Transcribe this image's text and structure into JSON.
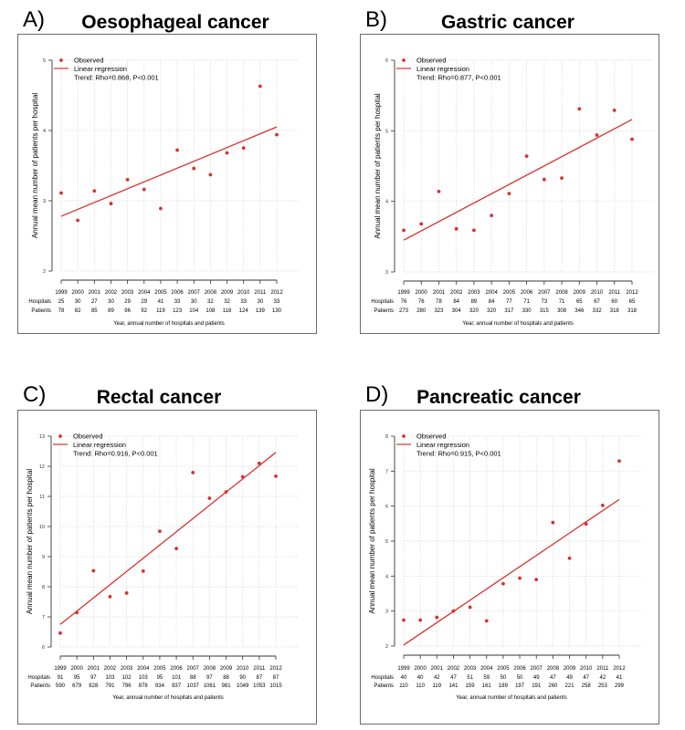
{
  "figure": {
    "accent_color": "#d9302f"
  },
  "chart_data": [
    {
      "type": "scatter",
      "panel_letter": "A)",
      "title": "Oesophageal cancer",
      "xlabel": "Year, annual number of hospitals and patients",
      "ylabel": "Annual mean number of patients per hospital",
      "ylim": [
        2,
        5
      ],
      "yticks": [
        "2",
        "3",
        "4",
        "5"
      ],
      "grid": true,
      "legend": {
        "placement": "top-left",
        "observed": "Observed",
        "regression": "Linear regression",
        "trend": "Trend: Rho=0.868, P<0.001"
      },
      "x": [
        "1999",
        "2000",
        "2001",
        "2002",
        "2003",
        "2004",
        "2005",
        "2006",
        "2007",
        "2008",
        "2009",
        "2010",
        "2011",
        "2012"
      ],
      "series": [
        {
          "name": "Observed",
          "values": [
            3.11,
            2.72,
            3.14,
            2.96,
            3.3,
            3.16,
            2.89,
            3.72,
            3.46,
            3.37,
            3.68,
            3.75,
            4.63,
            3.94
          ]
        },
        {
          "name": "Linear regression",
          "values": [
            2.78,
            4.05
          ],
          "x": [
            "1999",
            "2012"
          ]
        }
      ],
      "table": {
        "row_labels": [
          "Hospitals",
          "Patients"
        ],
        "hospitals": [
          "25",
          "30",
          "27",
          "30",
          "29",
          "29",
          "41",
          "33",
          "30",
          "32",
          "32",
          "33",
          "30",
          "33"
        ],
        "patients": [
          "78",
          "82",
          "85",
          "89",
          "96",
          "92",
          "119",
          "123",
          "104",
          "108",
          "118",
          "124",
          "139",
          "130"
        ]
      }
    },
    {
      "type": "scatter",
      "panel_letter": "B)",
      "title": "Gastric cancer",
      "xlabel": "Year, annual number of hospitals and patients",
      "ylabel": "Annual mean number of patients per hospital",
      "ylim": [
        3,
        6
      ],
      "yticks": [
        "3",
        "4",
        "5",
        "6"
      ],
      "grid": true,
      "legend": {
        "placement": "top-left",
        "observed": "Observed",
        "regression": "Linear regression",
        "trend": "Trend: Rho=0.877, P<0.001"
      },
      "x": [
        "1999",
        "2000",
        "2001",
        "2002",
        "2003",
        "2004",
        "2005",
        "2006",
        "2007",
        "2008",
        "2009",
        "2010",
        "2011",
        "2012"
      ],
      "series": [
        {
          "name": "Observed",
          "values": [
            3.59,
            3.68,
            4.14,
            3.61,
            3.59,
            3.8,
            4.11,
            4.64,
            4.31,
            4.33,
            5.31,
            4.94,
            5.29,
            4.88
          ]
        },
        {
          "name": "Linear regression",
          "values": [
            3.45,
            5.16
          ],
          "x": [
            "1999",
            "2012"
          ]
        }
      ],
      "table": {
        "row_labels": [
          "Hospitals",
          "Patients"
        ],
        "hospitals": [
          "76",
          "76",
          "78",
          "84",
          "89",
          "84",
          "77",
          "71",
          "73",
          "71",
          "65",
          "67",
          "60",
          "65"
        ],
        "patients": [
          "273",
          "280",
          "323",
          "304",
          "320",
          "320",
          "317",
          "330",
          "315",
          "308",
          "346",
          "332",
          "318",
          "318"
        ]
      }
    },
    {
      "type": "scatter",
      "panel_letter": "C)",
      "title": "Rectal cancer",
      "xlabel": "Year, annual number of hospitals and patients",
      "ylabel": "Annual mean number of patients per hospital",
      "ylim": [
        6,
        13
      ],
      "yticks": [
        "6",
        "7",
        "8",
        "9",
        "10",
        "11",
        "12",
        "13"
      ],
      "grid": true,
      "legend": {
        "placement": "top-left",
        "observed": "Observed",
        "regression": "Linear regression",
        "trend": "Trend: Rho=0.916, P<0.001"
      },
      "x": [
        "1999",
        "2000",
        "2001",
        "2002",
        "2003",
        "2004",
        "2005",
        "2006",
        "2007",
        "2008",
        "2009",
        "2010",
        "2011",
        "2012"
      ],
      "series": [
        {
          "name": "Observed",
          "values": [
            6.46,
            7.14,
            8.53,
            7.67,
            7.79,
            8.52,
            9.84,
            9.27,
            11.79,
            10.94,
            11.15,
            11.65,
            12.1,
            11.67
          ]
        },
        {
          "name": "Linear regression",
          "values": [
            6.75,
            12.46
          ],
          "x": [
            "1999",
            "2012"
          ]
        }
      ],
      "table": {
        "row_labels": [
          "Hospitals",
          "Patients"
        ],
        "hospitals": [
          "91",
          "95",
          "97",
          "103",
          "102",
          "103",
          "95",
          "101",
          "88",
          "97",
          "88",
          "90",
          "87",
          "87"
        ],
        "patients": [
          "590",
          "679",
          "828",
          "791",
          "796",
          "878",
          "934",
          "937",
          "1037",
          "1061",
          "981",
          "1049",
          "1053",
          "1015"
        ]
      }
    },
    {
      "type": "scatter",
      "panel_letter": "D)",
      "title": "Pancreatic cancer",
      "xlabel": "Year, annual number of hospitals and patients",
      "ylabel": "Annual mean number of patients per hospital",
      "ylim": [
        2,
        8
      ],
      "yticks": [
        "2",
        "3",
        "4",
        "5",
        "6",
        "7",
        "8"
      ],
      "grid": true,
      "legend": {
        "placement": "top-left",
        "observed": "Observed",
        "regression": "Linear regression",
        "trend": "Trend: Rho=0.915, P<0.001"
      },
      "x": [
        "1999",
        "2000",
        "2001",
        "2002",
        "2003",
        "2004",
        "2005",
        "2006",
        "2007",
        "2008",
        "2009",
        "2010",
        "2011",
        "2012"
      ],
      "series": [
        {
          "name": "Observed",
          "values": [
            2.74,
            2.74,
            2.82,
            3.0,
            3.11,
            2.72,
            3.78,
            3.94,
            3.9,
            5.53,
            4.51,
            5.49,
            6.02,
            7.29
          ]
        },
        {
          "name": "Linear regression",
          "values": [
            2.03,
            6.19
          ],
          "x": [
            "1999",
            "2012"
          ]
        }
      ],
      "table": {
        "row_labels": [
          "Hospitals",
          "Patients"
        ],
        "hospitals": [
          "40",
          "40",
          "42",
          "47",
          "51",
          "59",
          "50",
          "50",
          "49",
          "47",
          "49",
          "47",
          "42",
          "41"
        ],
        "patients": [
          "110",
          "110",
          "119",
          "141",
          "159",
          "161",
          "189",
          "197",
          "191",
          "260",
          "221",
          "258",
          "253",
          "299"
        ]
      }
    }
  ]
}
